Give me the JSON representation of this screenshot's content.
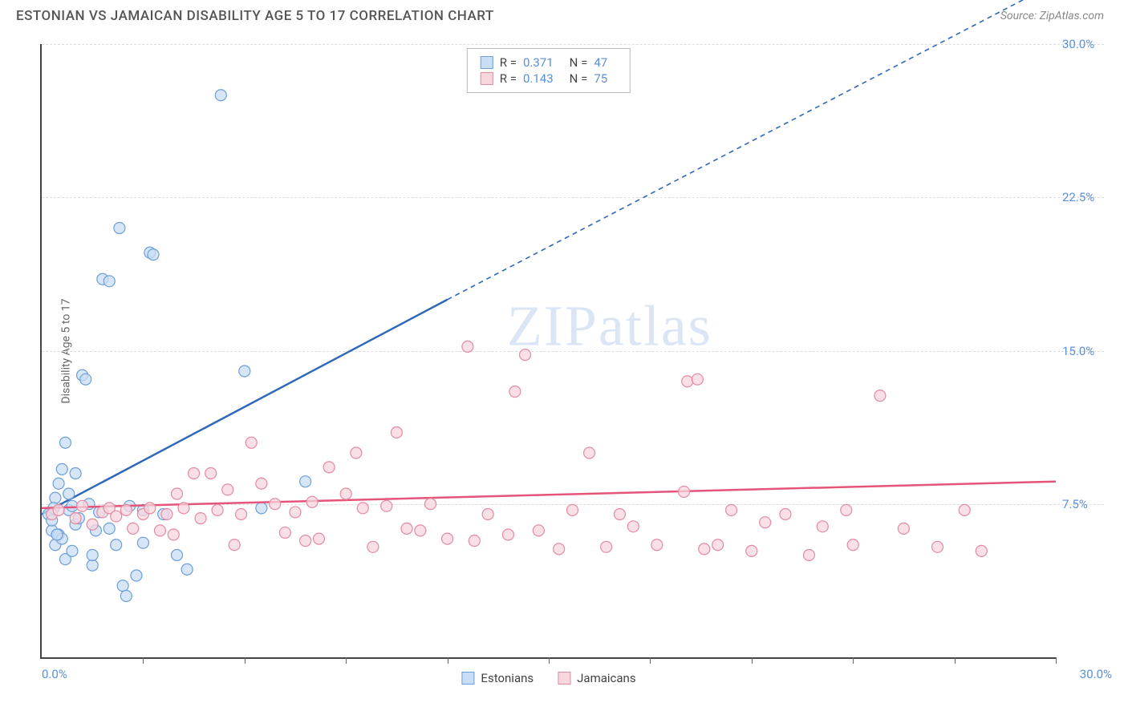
{
  "header": {
    "title": "ESTONIAN VS JAMAICAN DISABILITY AGE 5 TO 17 CORRELATION CHART",
    "source_prefix": "Source: ",
    "source": "ZipAtlas.com"
  },
  "watermark": {
    "text_bold": "ZIP",
    "text_thin": "atlas"
  },
  "chart": {
    "type": "scatter",
    "y_axis_label": "Disability Age 5 to 17",
    "xlim": [
      0,
      30
    ],
    "ylim": [
      0,
      30
    ],
    "x_min_label": "0.0%",
    "x_max_label": "30.0%",
    "y_ticks": [
      7.5,
      15.0,
      22.5,
      30.0
    ],
    "y_tick_labels": [
      "7.5%",
      "15.0%",
      "22.5%",
      "30.0%"
    ],
    "x_ticks_minor": [
      3,
      6,
      9,
      12,
      15,
      18,
      21,
      24,
      27,
      30
    ],
    "background_color": "#ffffff",
    "grid_color": "#dddddd",
    "marker_radius": 7,
    "marker_stroke_width": 1.2,
    "trend_line_width": 2.5,
    "dashed_line_width": 1.6,
    "series": [
      {
        "name": "Estonians",
        "label": "Estonians",
        "color_fill": "#c9ddf4",
        "color_stroke": "#6d9fd8",
        "line_color": "#2f68b8",
        "r": 0.371,
        "n": 47,
        "trend": {
          "x1": 0,
          "y1": 7.0,
          "x2": 12.0,
          "y2": 17.5,
          "x2_dash": 30,
          "y2_dash": 33
        },
        "points": [
          [
            0.2,
            7.0
          ],
          [
            0.3,
            6.2
          ],
          [
            0.4,
            5.5
          ],
          [
            0.4,
            7.8
          ],
          [
            0.5,
            8.5
          ],
          [
            0.5,
            6.0
          ],
          [
            0.6,
            9.2
          ],
          [
            0.6,
            5.8
          ],
          [
            0.7,
            10.5
          ],
          [
            0.7,
            4.8
          ],
          [
            0.8,
            8.0
          ],
          [
            0.8,
            7.2
          ],
          [
            0.9,
            7.4
          ],
          [
            0.9,
            5.2
          ],
          [
            1.0,
            6.5
          ],
          [
            1.0,
            9.0
          ],
          [
            1.1,
            6.8
          ],
          [
            1.2,
            13.8
          ],
          [
            1.3,
            13.6
          ],
          [
            1.4,
            7.5
          ],
          [
            1.5,
            4.5
          ],
          [
            1.5,
            5.0
          ],
          [
            1.6,
            6.2
          ],
          [
            1.7,
            7.1
          ],
          [
            1.8,
            18.5
          ],
          [
            2.0,
            18.4
          ],
          [
            2.0,
            6.3
          ],
          [
            2.2,
            5.5
          ],
          [
            2.3,
            21.0
          ],
          [
            2.4,
            3.5
          ],
          [
            2.5,
            3.0
          ],
          [
            2.6,
            7.4
          ],
          [
            2.8,
            4.0
          ],
          [
            3.0,
            7.2
          ],
          [
            3.0,
            5.6
          ],
          [
            3.2,
            19.8
          ],
          [
            3.3,
            19.7
          ],
          [
            3.6,
            7.0
          ],
          [
            4.0,
            5.0
          ],
          [
            4.3,
            4.3
          ],
          [
            5.3,
            27.5
          ],
          [
            6.0,
            14.0
          ],
          [
            6.5,
            7.3
          ],
          [
            7.8,
            8.6
          ],
          [
            0.3,
            6.7
          ],
          [
            0.35,
            7.3
          ],
          [
            0.45,
            6.0
          ]
        ]
      },
      {
        "name": "Jamaicans",
        "label": "Jamaicans",
        "color_fill": "#f7d6de",
        "color_stroke": "#e38ba2",
        "line_color": "#e5547a",
        "r": 0.143,
        "n": 75,
        "trend": {
          "x1": 0,
          "y1": 7.3,
          "x2": 30,
          "y2": 8.6
        },
        "points": [
          [
            0.3,
            7.0
          ],
          [
            0.5,
            7.2
          ],
          [
            1.0,
            6.8
          ],
          [
            1.2,
            7.4
          ],
          [
            1.5,
            6.5
          ],
          [
            1.8,
            7.1
          ],
          [
            2.0,
            7.3
          ],
          [
            2.2,
            6.9
          ],
          [
            2.5,
            7.2
          ],
          [
            2.7,
            6.3
          ],
          [
            3.0,
            7.0
          ],
          [
            3.2,
            7.3
          ],
          [
            3.5,
            6.2
          ],
          [
            3.7,
            7.0
          ],
          [
            3.9,
            6.0
          ],
          [
            4.0,
            8.0
          ],
          [
            4.2,
            7.3
          ],
          [
            4.5,
            9.0
          ],
          [
            4.7,
            6.8
          ],
          [
            5.0,
            9.0
          ],
          [
            5.2,
            7.2
          ],
          [
            5.5,
            8.2
          ],
          [
            5.7,
            5.5
          ],
          [
            5.9,
            7.0
          ],
          [
            6.2,
            10.5
          ],
          [
            6.5,
            8.5
          ],
          [
            6.9,
            7.5
          ],
          [
            7.2,
            6.1
          ],
          [
            7.5,
            7.1
          ],
          [
            7.8,
            5.7
          ],
          [
            8.0,
            7.6
          ],
          [
            8.2,
            5.8
          ],
          [
            8.5,
            9.3
          ],
          [
            9.0,
            8.0
          ],
          [
            9.3,
            10.0
          ],
          [
            9.5,
            7.3
          ],
          [
            9.8,
            5.4
          ],
          [
            10.2,
            7.4
          ],
          [
            10.5,
            11.0
          ],
          [
            10.8,
            6.3
          ],
          [
            11.2,
            6.2
          ],
          [
            11.5,
            7.5
          ],
          [
            12.0,
            5.8
          ],
          [
            12.6,
            15.2
          ],
          [
            12.8,
            5.7
          ],
          [
            13.2,
            7.0
          ],
          [
            13.8,
            6.0
          ],
          [
            14.0,
            13.0
          ],
          [
            14.3,
            14.8
          ],
          [
            14.7,
            6.2
          ],
          [
            15.3,
            5.3
          ],
          [
            15.7,
            7.2
          ],
          [
            16.2,
            10.0
          ],
          [
            16.7,
            5.4
          ],
          [
            17.1,
            7.0
          ],
          [
            17.5,
            6.4
          ],
          [
            18.2,
            5.5
          ],
          [
            19.0,
            8.1
          ],
          [
            19.1,
            13.5
          ],
          [
            19.4,
            13.6
          ],
          [
            19.6,
            5.3
          ],
          [
            20.0,
            5.5
          ],
          [
            20.4,
            7.2
          ],
          [
            21.0,
            5.2
          ],
          [
            21.4,
            6.6
          ],
          [
            22.0,
            7.0
          ],
          [
            22.7,
            5.0
          ],
          [
            23.1,
            6.4
          ],
          [
            23.8,
            7.2
          ],
          [
            24.0,
            5.5
          ],
          [
            24.8,
            12.8
          ],
          [
            25.5,
            6.3
          ],
          [
            26.5,
            5.4
          ],
          [
            27.3,
            7.2
          ],
          [
            27.8,
            5.2
          ]
        ]
      }
    ],
    "legend_stats": [
      {
        "series": 0,
        "r_label": "R =",
        "r": "0.371",
        "n_label": "N =",
        "n": "47"
      },
      {
        "series": 1,
        "r_label": "R =",
        "r": "0.143",
        "n_label": "N =",
        "n": "75"
      }
    ]
  }
}
